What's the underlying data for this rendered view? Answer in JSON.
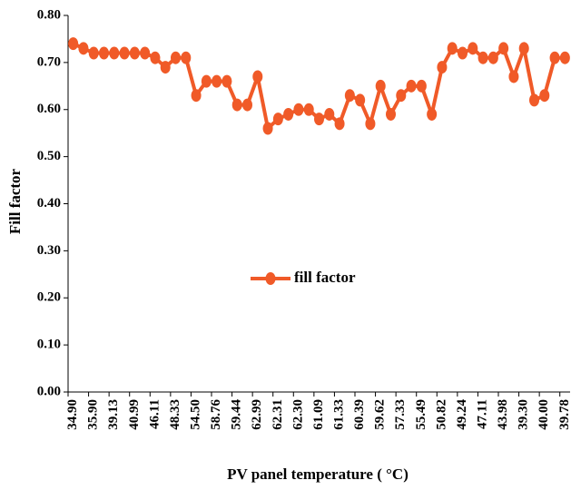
{
  "chart_data": {
    "type": "line",
    "x_label": "PV panel temperature ( °C)",
    "y_label": "Fill factor",
    "categories": [
      "34.90",
      null,
      "35.90",
      null,
      "39.13",
      null,
      "40.99",
      null,
      "46.11",
      null,
      "48.33",
      null,
      "54.50",
      null,
      "58.76",
      null,
      "59.44",
      null,
      "62.99",
      null,
      "62.31",
      null,
      "62.30",
      null,
      "61.09",
      null,
      "61.33",
      null,
      "60.39",
      null,
      "59.62",
      null,
      "57.33",
      null,
      "55.49",
      null,
      "50.82",
      null,
      "49.24",
      null,
      "47.11",
      null,
      "43.98",
      null,
      "39.30",
      null,
      "40.00",
      null,
      "39.78"
    ],
    "series": [
      {
        "name": "fill factor",
        "color": "#f05a28",
        "values": [
          0.74,
          0.73,
          0.72,
          0.72,
          0.72,
          0.72,
          0.72,
          0.72,
          0.71,
          0.69,
          0.71,
          0.71,
          0.63,
          0.66,
          0.66,
          0.66,
          0.61,
          0.61,
          0.67,
          0.56,
          0.58,
          0.59,
          0.6,
          0.6,
          0.58,
          0.59,
          0.57,
          0.63,
          0.62,
          0.57,
          0.65,
          0.59,
          0.63,
          0.65,
          0.65,
          0.59,
          0.69,
          0.73,
          0.72,
          0.73,
          0.71,
          0.71,
          0.73,
          0.67,
          0.73,
          0.62,
          0.63,
          0.71,
          0.71
        ]
      }
    ],
    "ylim": [
      0,
      0.8
    ],
    "yticks": [
      {
        "value": 0,
        "label": "0.00"
      },
      {
        "value": 0.1,
        "label": "0.10"
      },
      {
        "value": 0.2,
        "label": "0.20"
      },
      {
        "value": 0.3,
        "label": "0.30"
      },
      {
        "value": 0.4,
        "label": "0.40"
      },
      {
        "value": 0.5,
        "label": "0.50"
      },
      {
        "value": 0.6,
        "label": "0.60"
      },
      {
        "value": 0.7,
        "label": "0.70"
      },
      {
        "value": 0.8,
        "label": "0.80"
      }
    ],
    "legend": "center"
  }
}
